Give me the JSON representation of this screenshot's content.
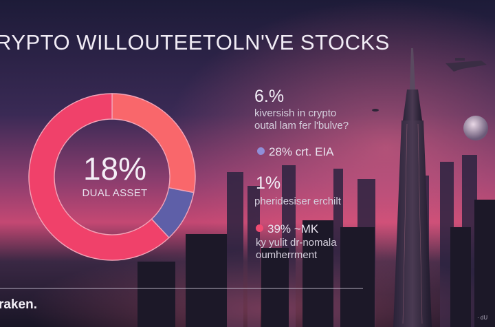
{
  "title": "RYPTO WILLOUTEETOLN'VE STOCKS",
  "colors": {
    "sky_top": "#1b1a36",
    "sky_glow": "#f0487a",
    "city": "#1e1a30",
    "accent_red": "#f0416a",
    "accent_coral": "#f9676b",
    "accent_blue": "#5e5fa8"
  },
  "chart_data": {
    "type": "pie",
    "variant": "donut",
    "center_value": "18%",
    "center_label": "DUAL ASSET",
    "slices": [
      {
        "value": 0.28,
        "color": "#f9676b"
      },
      {
        "value": 0.1,
        "color": "#5e5fa8"
      },
      {
        "value": 0.62,
        "color": "#f0416a"
      }
    ]
  },
  "stats": [
    {
      "value": "6.%",
      "lines": [
        "kiversish in crypto",
        "outal lam fer l'bulve?"
      ]
    },
    {
      "value": "28%",
      "suffix": "crt. EIA",
      "dot": "#8f8fd8"
    },
    {
      "value": "1%",
      "lines": [
        "pheridesiser erchilt"
      ]
    },
    {
      "value": "39%",
      "suffix": "~MK",
      "dot": "#f04b72",
      "lines": [
        "ky yulit dr-nomala",
        "oumherrment"
      ]
    }
  ],
  "brand": "raken.",
  "watermark": "· dU"
}
